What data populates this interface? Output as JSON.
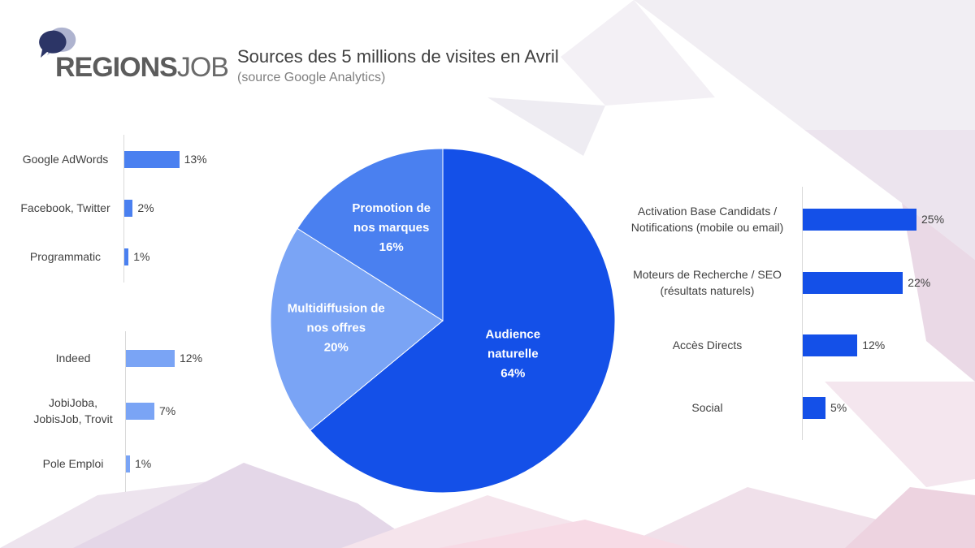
{
  "logo": {
    "brand_main": "REGIONS",
    "brand_job": "JOB"
  },
  "header": {
    "title": "Sources des 5 millions de visites en Avril",
    "subtitle": "(source Google Analytics)"
  },
  "colors": {
    "primary_blue": "#1450e8",
    "mid_blue": "#4a80f0",
    "light_blue": "#7aa4f5",
    "label_text": "#404040"
  },
  "chart_data": [
    {
      "type": "bar",
      "orientation": "horizontal",
      "categories": [
        "Google AdWords",
        "Facebook, Twitter",
        "Programmatic"
      ],
      "values": [
        13,
        2,
        1
      ],
      "value_labels": [
        "13%",
        "2%",
        "1%"
      ],
      "color": "#4a80f0"
    },
    {
      "type": "bar",
      "orientation": "horizontal",
      "categories": [
        "Indeed",
        "JobiJoba, JobisJob, Trovit",
        "Pole Emploi"
      ],
      "values": [
        12,
        7,
        1
      ],
      "value_labels": [
        "12%",
        "7%",
        "1%"
      ],
      "color": "#7aa4f5"
    },
    {
      "type": "pie",
      "slices": [
        {
          "label": "Audience naturelle",
          "value": 64,
          "value_label": "64%",
          "color": "#1450e8"
        },
        {
          "label": "Multidiffusion de nos offres",
          "value": 20,
          "value_label": "20%",
          "color": "#7aa4f5"
        },
        {
          "label": "Promotion de nos marques",
          "value": 16,
          "value_label": "16%",
          "color": "#4a80f0"
        }
      ]
    },
    {
      "type": "bar",
      "orientation": "horizontal",
      "categories": [
        "Activation Base Candidats / Notifications (mobile ou email)",
        "Moteurs de Recherche / SEO (résultats naturels)",
        "Accès Directs",
        "Social"
      ],
      "values": [
        25,
        22,
        12,
        5
      ],
      "value_labels": [
        "25%",
        "22%",
        "12%",
        "5%"
      ],
      "color": "#1450e8"
    }
  ]
}
